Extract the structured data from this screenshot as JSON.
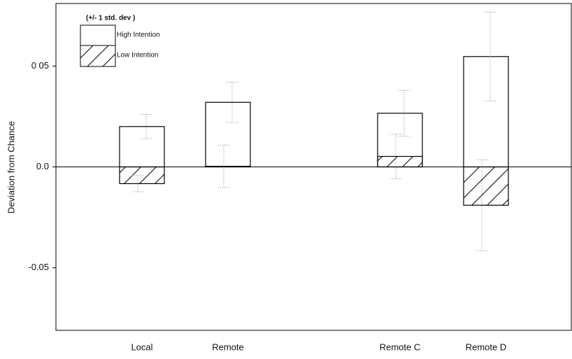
{
  "chart_data": {
    "type": "bar",
    "y_label": "Deviation from Chance",
    "legend_title": "(+/- 1 std. dev )",
    "categories": [
      "Local",
      "Remote",
      null,
      "Remote C",
      "Remote D"
    ],
    "series": [
      {
        "name": "High Intention",
        "pattern": "none",
        "color": "#000000",
        "values": [
          0.02,
          0.032,
          null,
          0.0266,
          0.0547
        ],
        "errors": [
          0.006,
          0.01,
          null,
          0.0114,
          0.022
        ]
      },
      {
        "name": "Low Intention",
        "pattern": "diagonal",
        "color": "#000000",
        "values": [
          -0.0083,
          0.0003,
          null,
          0.0052,
          -0.019
        ],
        "errors": [
          0.004,
          0.0105,
          null,
          0.011,
          0.0225
        ]
      }
    ],
    "ylim": [
      -0.081,
      0.081
    ],
    "yticks": [
      {
        "value": 0.05,
        "label": "0 05"
      },
      {
        "value": 0,
        "label": "0.0"
      },
      -0.05
    ],
    "zero_line": true
  }
}
